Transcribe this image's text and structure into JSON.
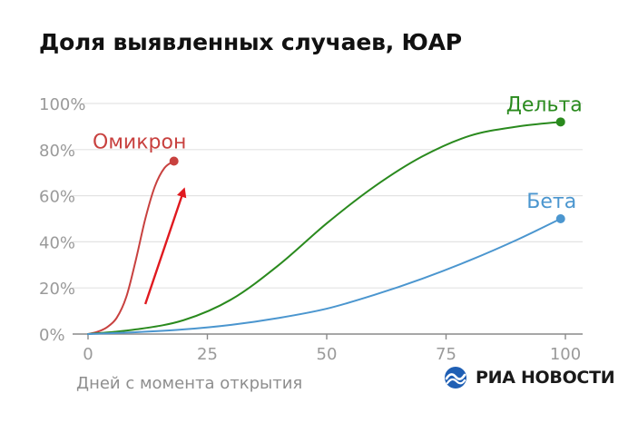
{
  "title": "Доля выявленных случаев, ЮАР",
  "source_logo": "РИА НОВОСТИ",
  "colors": {
    "omicron": "#c8413f",
    "delta": "#2a8a1e",
    "beta": "#4b96cf",
    "arrow": "#e0191f",
    "grid": "#e3e3e3",
    "tick": "#9a9a9a",
    "logo": "#1f5fb4"
  },
  "chart_data": {
    "type": "line",
    "xlabel": "Дней с момента открытия",
    "ylabel": "",
    "xlim": [
      0,
      100
    ],
    "ylim": [
      0,
      100
    ],
    "x_ticks": [
      0,
      25,
      50,
      75,
      100
    ],
    "x_tick_labels": [
      "0",
      "25",
      "50",
      "75",
      "100"
    ],
    "y_ticks": [
      0,
      20,
      40,
      60,
      80,
      100
    ],
    "y_tick_labels": [
      "0%",
      "20%",
      "40%",
      "60%",
      "80%",
      "100%"
    ],
    "grid": "horizontal",
    "legend": "inline-labels",
    "series": [
      {
        "name": "Омикрон",
        "color": "#c8413f",
        "x": [
          0,
          2,
          4,
          6,
          8,
          10,
          12,
          14,
          16,
          18
        ],
        "y": [
          0,
          1,
          3,
          7,
          16,
          32,
          50,
          64,
          72,
          75
        ]
      },
      {
        "name": "Дельта",
        "color": "#2a8a1e",
        "x": [
          0,
          10,
          20,
          30,
          40,
          50,
          60,
          70,
          80,
          90,
          99
        ],
        "y": [
          0,
          2,
          6,
          15,
          30,
          48,
          64,
          77,
          86,
          90,
          92
        ]
      },
      {
        "name": "Бета",
        "color": "#4b96cf",
        "x": [
          0,
          10,
          20,
          30,
          40,
          50,
          60,
          70,
          80,
          90,
          99
        ],
        "y": [
          0,
          0.8,
          2,
          4,
          7,
          11,
          17,
          24,
          32,
          41,
          50
        ]
      }
    ],
    "annotations": [
      {
        "type": "arrow",
        "from": [
          12,
          13
        ],
        "to": [
          20,
          62
        ]
      }
    ]
  }
}
